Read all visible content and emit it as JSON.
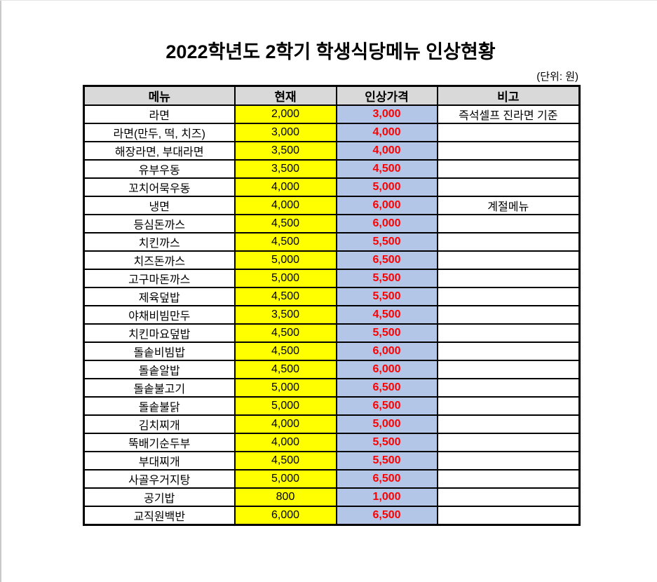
{
  "page": {
    "title": "2022학년도 2학기 학생식당메뉴 인상현황",
    "unit_label": "(단위: 원)"
  },
  "table": {
    "columns": [
      "메뉴",
      "현재",
      "인상가격",
      "비고"
    ],
    "colors": {
      "header_bg": "#d9d9d9",
      "current_bg": "#ffff00",
      "raised_bg": "#b4c6e7",
      "raised_text": "#ff0000",
      "border": "#000000"
    },
    "rows": [
      {
        "menu": "라면",
        "current": "2,000",
        "raised": "3,000",
        "note": "즉석셀프 진라면 기준"
      },
      {
        "menu": "라면(만두, 떡, 치즈)",
        "current": "3,000",
        "raised": "4,000",
        "note": ""
      },
      {
        "menu": "해장라면, 부대라면",
        "current": "3,500",
        "raised": "4,000",
        "note": ""
      },
      {
        "menu": "유부우동",
        "current": "3,500",
        "raised": "4,500",
        "note": ""
      },
      {
        "menu": "꼬치어묵우동",
        "current": "4,000",
        "raised": "5,000",
        "note": ""
      },
      {
        "menu": "냉면",
        "current": "4,000",
        "raised": "6,000",
        "note": "계절메뉴"
      },
      {
        "menu": "등심돈까스",
        "current": "4,500",
        "raised": "6,000",
        "note": ""
      },
      {
        "menu": "치킨까스",
        "current": "4,500",
        "raised": "5,500",
        "note": ""
      },
      {
        "menu": "치즈돈까스",
        "current": "5,000",
        "raised": "6,500",
        "note": ""
      },
      {
        "menu": "고구마돈까스",
        "current": "5,000",
        "raised": "5,500",
        "note": ""
      },
      {
        "menu": "제육덮밥",
        "current": "4,500",
        "raised": "5,500",
        "note": ""
      },
      {
        "menu": "야채비빔만두",
        "current": "3,500",
        "raised": "4,500",
        "note": ""
      },
      {
        "menu": "치킨마요덮밥",
        "current": "4,500",
        "raised": "5,500",
        "note": ""
      },
      {
        "menu": "돌솥비빔밥",
        "current": "4,500",
        "raised": "6,000",
        "note": ""
      },
      {
        "menu": "돌솥알밥",
        "current": "4,500",
        "raised": "6,000",
        "note": ""
      },
      {
        "menu": "돌솥불고기",
        "current": "5,000",
        "raised": "6,500",
        "note": ""
      },
      {
        "menu": "돌솥불닭",
        "current": "5,000",
        "raised": "6,500",
        "note": ""
      },
      {
        "menu": "김치찌개",
        "current": "4,000",
        "raised": "5,000",
        "note": ""
      },
      {
        "menu": "뚝배기순두부",
        "current": "4,000",
        "raised": "5,500",
        "note": ""
      },
      {
        "menu": "부대찌개",
        "current": "4,500",
        "raised": "5,500",
        "note": ""
      },
      {
        "menu": "사골우거지탕",
        "current": "5,000",
        "raised": "6,500",
        "note": ""
      },
      {
        "menu": "공기밥",
        "current": "800",
        "raised": "1,000",
        "note": ""
      },
      {
        "menu": "교직원백반",
        "current": "6,000",
        "raised": "6,500",
        "note": ""
      }
    ]
  }
}
